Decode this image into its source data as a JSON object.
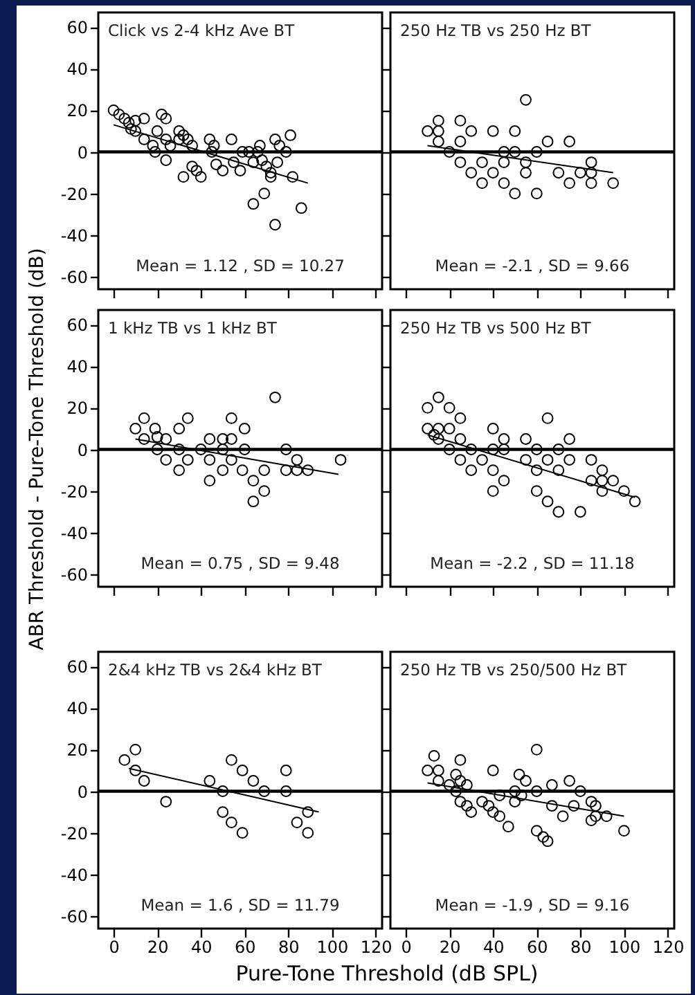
{
  "chart_data": [
    {
      "type": "scatter",
      "annotations": [
        "Click vs 2-4 kHz Ave BT",
        "Mean = 1.12 , SD = 10.27"
      ],
      "xlim": [
        -7,
        123
      ],
      "ylim": [
        -66,
        67
      ],
      "xticks": [
        0,
        20,
        40,
        60,
        80,
        100,
        120
      ],
      "yticks": [
        -60,
        -40,
        -20,
        0,
        20,
        40,
        60
      ],
      "tick_labels": "y",
      "ref_lines": [
        {
          "axis": "y",
          "value": 0
        }
      ],
      "series": [
        {
          "type": "scatter",
          "marker": "circle",
          "color": "#000000",
          "x": [
            0,
            2.5,
            5,
            7,
            10,
            14,
            8,
            10,
            14,
            18,
            19,
            22,
            24,
            20,
            24,
            24,
            26,
            30,
            30,
            32,
            34,
            36,
            32,
            36,
            38,
            40,
            44,
            46,
            45,
            47,
            50,
            54,
            55,
            58,
            59,
            62,
            64,
            67,
            66,
            68,
            70,
            72,
            74,
            76,
            75,
            72,
            79,
            81,
            82,
            64,
            69,
            74,
            86
          ],
          "values": [
            20,
            18,
            16,
            14,
            15,
            16,
            11,
            10,
            6,
            3,
            0,
            18,
            16,
            10,
            6,
            -4,
            3,
            6,
            10,
            8,
            6,
            3,
            -12,
            -7,
            -9,
            -12,
            6,
            3,
            0,
            -6,
            -9,
            6,
            -5,
            -9,
            0,
            0,
            -5,
            3,
            0,
            -4,
            -7,
            -10,
            6,
            3,
            -5,
            -12,
            0,
            8,
            -12,
            -25,
            -20,
            -35,
            -27
          ]
        },
        {
          "type": "line",
          "color": "#000000",
          "x": [
            0,
            89
          ],
          "values": [
            13,
            -15
          ]
        }
      ]
    },
    {
      "type": "scatter",
      "annotations": [
        "250 Hz TB vs 250 Hz BT",
        "Mean = -2.1 , SD = 9.66"
      ],
      "xlim": [
        -7,
        123
      ],
      "ylim": [
        -66,
        67
      ],
      "xticks": [
        0,
        20,
        40,
        60,
        80,
        100,
        120
      ],
      "yticks": [
        -60,
        -40,
        -20,
        0,
        20,
        40,
        60
      ],
      "tick_labels": false,
      "ref_lines": [
        {
          "axis": "y",
          "value": 0
        }
      ],
      "series": [
        {
          "type": "scatter",
          "marker": "circle",
          "color": "#000000",
          "x": [
            10,
            15,
            15,
            15,
            20,
            25,
            30,
            25,
            25,
            30,
            35,
            35,
            40,
            40,
            45,
            45,
            45,
            50,
            50,
            50,
            55,
            55,
            55,
            60,
            60,
            65,
            70,
            75,
            75,
            80,
            85,
            85,
            85,
            95
          ],
          "values": [
            10,
            15,
            10,
            5,
            0,
            15,
            10,
            5,
            -5,
            -10,
            -5,
            -15,
            10,
            -10,
            0,
            -5,
            -15,
            10,
            0,
            -20,
            25,
            -5,
            -10,
            0,
            -20,
            5,
            -10,
            5,
            -15,
            -10,
            -5,
            -10,
            -15,
            -15
          ]
        },
        {
          "type": "line",
          "color": "#000000",
          "x": [
            10,
            95
          ],
          "values": [
            3,
            -10
          ]
        }
      ]
    },
    {
      "type": "scatter",
      "annotations": [
        "1 kHz TB vs 1 kHz BT",
        "Mean = 0.75 , SD = 9.48"
      ],
      "xlim": [
        -7,
        123
      ],
      "ylim": [
        -66,
        67
      ],
      "xticks": [
        0,
        20,
        40,
        60,
        80,
        100,
        120
      ],
      "yticks": [
        -60,
        -40,
        -20,
        0,
        20,
        40,
        60
      ],
      "tick_labels": "y",
      "ylabel": "ABR Threshold - Pure-Tone Threshold (dB)",
      "ref_lines": [
        {
          "axis": "y",
          "value": 0
        }
      ],
      "series": [
        {
          "type": "scatter",
          "marker": "circle",
          "color": "#000000",
          "x": [
            10,
            14,
            14,
            19,
            20,
            24,
            20,
            24,
            30,
            30,
            30,
            34,
            34,
            40,
            44,
            44,
            44,
            50,
            50,
            50,
            54,
            54,
            54,
            60,
            60,
            59,
            64,
            69,
            64,
            69,
            74,
            79,
            79,
            84,
            84,
            89,
            104
          ],
          "values": [
            10,
            15,
            5,
            10,
            6,
            5,
            0,
            -5,
            10,
            0,
            -10,
            15,
            -5,
            0,
            5,
            -5,
            -15,
            5,
            0,
            -10,
            15,
            5,
            -5,
            10,
            0,
            -10,
            -15,
            -20,
            -25,
            -10,
            25,
            0,
            -10,
            -5,
            -10,
            -10,
            -5
          ]
        },
        {
          "type": "line",
          "color": "#000000",
          "x": [
            10,
            103
          ],
          "values": [
            5,
            -12
          ]
        }
      ]
    },
    {
      "type": "scatter",
      "annotations": [
        "250 Hz TB vs 500 Hz BT",
        "Mean = -2.2 , SD = 11.18"
      ],
      "xlim": [
        -7,
        123
      ],
      "ylim": [
        -66,
        67
      ],
      "xticks": [
        0,
        20,
        40,
        60,
        80,
        100,
        120
      ],
      "yticks": [
        -60,
        -40,
        -20,
        0,
        20,
        40,
        60
      ],
      "tick_labels": false,
      "ref_lines": [
        {
          "axis": "y",
          "value": 0
        }
      ],
      "series": [
        {
          "type": "scatter",
          "marker": "circle",
          "color": "#000000",
          "x": [
            10,
            15,
            20,
            25,
            10,
            15,
            20,
            13,
            15,
            25,
            20,
            30,
            25,
            30,
            35,
            40,
            40,
            45,
            45,
            40,
            45,
            40,
            55,
            55,
            60,
            60,
            60,
            65,
            65,
            65,
            70,
            70,
            70,
            75,
            75,
            80,
            85,
            85,
            90,
            90,
            90,
            95,
            100,
            105
          ],
          "values": [
            20,
            25,
            20,
            15,
            10,
            10,
            10,
            7,
            5,
            5,
            0,
            0,
            -5,
            -10,
            -5,
            10,
            0,
            5,
            0,
            -10,
            -15,
            -20,
            5,
            -5,
            0,
            -10,
            -20,
            15,
            -5,
            -25,
            0,
            -10,
            -30,
            5,
            -5,
            -30,
            -5,
            -15,
            -10,
            -15,
            -20,
            -15,
            -20,
            -25
          ]
        },
        {
          "type": "line",
          "color": "#000000",
          "x": [
            10,
            105
          ],
          "values": [
            7,
            -23
          ]
        }
      ]
    },
    {
      "type": "scatter",
      "annotations": [
        "2&4 kHz TB vs 2&4 kHz BT",
        "Mean = 1.6 , SD = 11.79"
      ],
      "xlim": [
        -7,
        123
      ],
      "ylim": [
        -66,
        67
      ],
      "xticks": [
        0,
        20,
        40,
        60,
        80,
        100,
        120
      ],
      "yticks": [
        -60,
        -40,
        -20,
        0,
        20,
        40,
        60
      ],
      "xlabel": "Pure-Tone Threshold (dB SPL)",
      "ref_lines": [
        {
          "axis": "y",
          "value": 0
        }
      ],
      "series": [
        {
          "type": "scatter",
          "marker": "circle",
          "color": "#000000",
          "x": [
            5,
            10,
            10,
            14,
            24,
            44,
            50,
            50,
            54,
            59,
            64,
            69,
            54,
            59,
            79,
            79,
            84,
            89,
            89
          ],
          "values": [
            15,
            20,
            10,
            5,
            -5,
            5,
            0,
            -10,
            15,
            10,
            5,
            0,
            -15,
            -20,
            10,
            0,
            -15,
            -10,
            -20
          ]
        },
        {
          "type": "line",
          "color": "#000000",
          "x": [
            7,
            94
          ],
          "values": [
            11,
            -10
          ]
        }
      ]
    },
    {
      "type": "scatter",
      "annotations": [
        "250 Hz TB vs 250/500 Hz BT",
        "Mean = -1.9 , SD = 9.16"
      ],
      "xlim": [
        -7,
        123
      ],
      "ylim": [
        -66,
        67
      ],
      "xticks": [
        0,
        20,
        40,
        60,
        80,
        100,
        120
      ],
      "yticks": [
        -60,
        -40,
        -20,
        0,
        20,
        40,
        60
      ],
      "tick_labels": "x",
      "ref_lines": [
        {
          "axis": "y",
          "value": 0
        }
      ],
      "series": [
        {
          "type": "scatter",
          "marker": "circle",
          "color": "#000000",
          "x": [
            10,
            13,
            15,
            15,
            20,
            23,
            25,
            25,
            28,
            23,
            25,
            28,
            30,
            35,
            38,
            40,
            43,
            40,
            43,
            47,
            50,
            50,
            52,
            55,
            53,
            60,
            60,
            60,
            63,
            65,
            67,
            67,
            72,
            75,
            77,
            80,
            85,
            85,
            87,
            87,
            92,
            100
          ],
          "values": [
            10,
            17,
            10,
            5,
            3,
            8,
            15,
            5,
            3,
            0,
            -5,
            -7,
            -10,
            -5,
            -7,
            -10,
            -12,
            10,
            -2,
            -17,
            0,
            -5,
            8,
            5,
            -2,
            0,
            20,
            -19,
            -22,
            -24,
            3,
            -7,
            -12,
            5,
            -7,
            0,
            -5,
            -14,
            -7,
            -12,
            -12,
            -19
          ]
        },
        {
          "type": "line",
          "color": "#000000",
          "x": [
            10,
            100
          ],
          "values": [
            4,
            -12
          ]
        }
      ]
    }
  ]
}
